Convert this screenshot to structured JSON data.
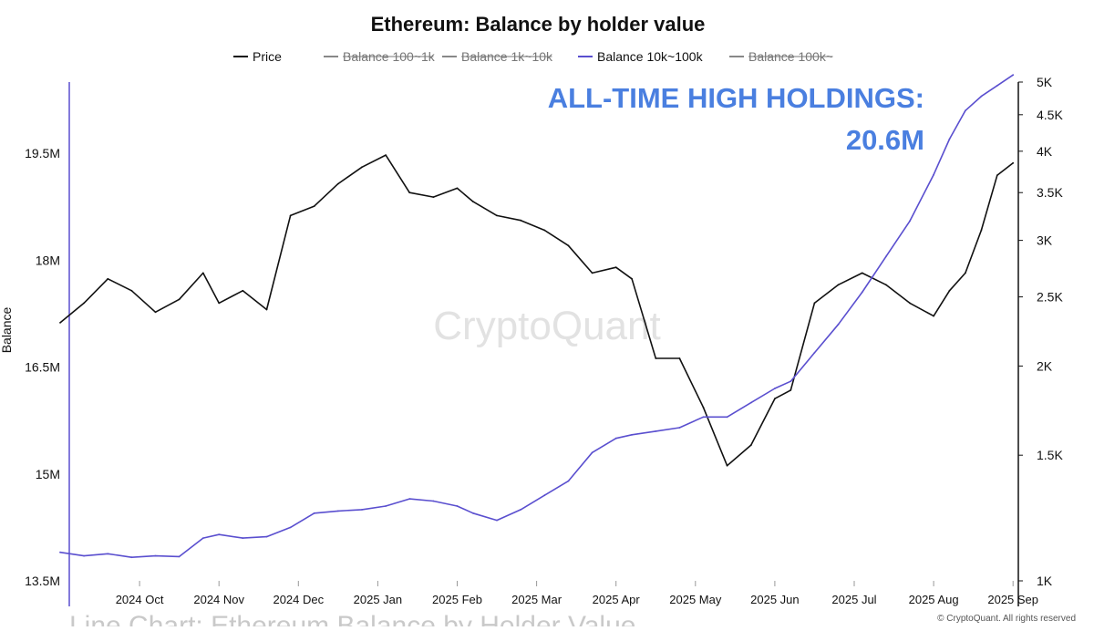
{
  "chart_data": {
    "type": "line",
    "title": "Ethereum: Balance by holder value",
    "ylabel": "Balance",
    "ylim_left": [
      13500000,
      20500000
    ],
    "ylim_right": [
      1000,
      5000
    ],
    "right_axis_scale": "log",
    "left_ticks": [
      {
        "value": 13500000,
        "label": "13.5M"
      },
      {
        "value": 15000000,
        "label": "15M"
      },
      {
        "value": 16500000,
        "label": "16.5M"
      },
      {
        "value": 18000000,
        "label": "18M"
      },
      {
        "value": 19500000,
        "label": "19.5M"
      }
    ],
    "right_ticks": [
      {
        "value": 1000,
        "label": "1K"
      },
      {
        "value": 1500,
        "label": "1.5K"
      },
      {
        "value": 2000,
        "label": "2K"
      },
      {
        "value": 2500,
        "label": "2.5K"
      },
      {
        "value": 3000,
        "label": "3K"
      },
      {
        "value": 3500,
        "label": "3.5K"
      },
      {
        "value": 4000,
        "label": "4K"
      },
      {
        "value": 4500,
        "label": "4.5K"
      },
      {
        "value": 5000,
        "label": "5K"
      }
    ],
    "categories": [
      "2024 Oct",
      "2024 Nov",
      "2024 Dec",
      "2025 Jan",
      "2025 Feb",
      "2025 Mar",
      "2025 Apr",
      "2025 May",
      "2025 Jun",
      "2025 Jul",
      "2025 Aug",
      "2025 Sep"
    ],
    "legend": [
      {
        "name": "Price",
        "color": "#111111",
        "hidden": false
      },
      {
        "name": "Balance 100~1k",
        "color": "#777777",
        "hidden": true
      },
      {
        "name": "Balance 1k~10k",
        "color": "#777777",
        "hidden": true
      },
      {
        "name": "Balance 10k~100k",
        "color": "#5a4fcf",
        "hidden": false
      },
      {
        "name": "Balance 100k~",
        "color": "#777777",
        "hidden": true
      }
    ],
    "series": [
      {
        "name": "Price",
        "axis": "right",
        "color": "#111111",
        "x": [
          0,
          0.3,
          0.6,
          0.9,
          1.2,
          1.5,
          1.8,
          2.0,
          2.3,
          2.6,
          2.9,
          3.2,
          3.5,
          3.8,
          4.1,
          4.4,
          4.7,
          5.0,
          5.2,
          5.5,
          5.8,
          6.1,
          6.4,
          6.7,
          7.0,
          7.2,
          7.5,
          7.8,
          8.1,
          8.4,
          8.7,
          9.0,
          9.2,
          9.5,
          9.8,
          10.1,
          10.4,
          10.7,
          11.0,
          11.2,
          11.4,
          11.6,
          11.8,
          12.0
        ],
        "values": [
          2300,
          2450,
          2650,
          2550,
          2380,
          2480,
          2700,
          2450,
          2550,
          2400,
          3250,
          3350,
          3600,
          3800,
          3950,
          3500,
          3450,
          3550,
          3400,
          3250,
          3200,
          3100,
          2950,
          2700,
          2750,
          2650,
          2050,
          2050,
          1750,
          1450,
          1550,
          1800,
          1850,
          2450,
          2600,
          2700,
          2600,
          2450,
          2350,
          2550,
          2700,
          3100,
          3700,
          3850
        ]
      },
      {
        "name": "Balance 10k~100k",
        "axis": "left",
        "color": "#5a4fcf",
        "x": [
          0,
          0.3,
          0.6,
          0.9,
          1.2,
          1.5,
          1.8,
          2.0,
          2.3,
          2.6,
          2.9,
          3.2,
          3.5,
          3.8,
          4.1,
          4.4,
          4.7,
          5.0,
          5.2,
          5.5,
          5.8,
          6.1,
          6.4,
          6.7,
          7.0,
          7.2,
          7.5,
          7.8,
          8.1,
          8.4,
          8.7,
          9.0,
          9.2,
          9.5,
          9.8,
          10.1,
          10.4,
          10.7,
          11.0,
          11.2,
          11.4,
          11.6,
          11.8,
          12.0
        ],
        "values": [
          13900000,
          13850000,
          13880000,
          13830000,
          13850000,
          13840000,
          14100000,
          14150000,
          14100000,
          14120000,
          14250000,
          14450000,
          14480000,
          14500000,
          14550000,
          14650000,
          14620000,
          14550000,
          14450000,
          14350000,
          14500000,
          14700000,
          14900000,
          15300000,
          15500000,
          15550000,
          15600000,
          15650000,
          15800000,
          15800000,
          16000000,
          16200000,
          16300000,
          16700000,
          17100000,
          17550000,
          18050000,
          18550000,
          19200000,
          19700000,
          20100000,
          20300000,
          20450000,
          20600000
        ]
      }
    ],
    "annotation": {
      "line1": "ALL-TIME HIGH HOLDINGS:",
      "line2": "20.6M",
      "color": "#4a7fe0"
    },
    "watermark": "CryptoQuant",
    "footer": "© CryptoQuant. All rights reserved",
    "bottom_partial_text": "Line Chart: Ethereum Balance by Holder Value",
    "grid": false
  }
}
